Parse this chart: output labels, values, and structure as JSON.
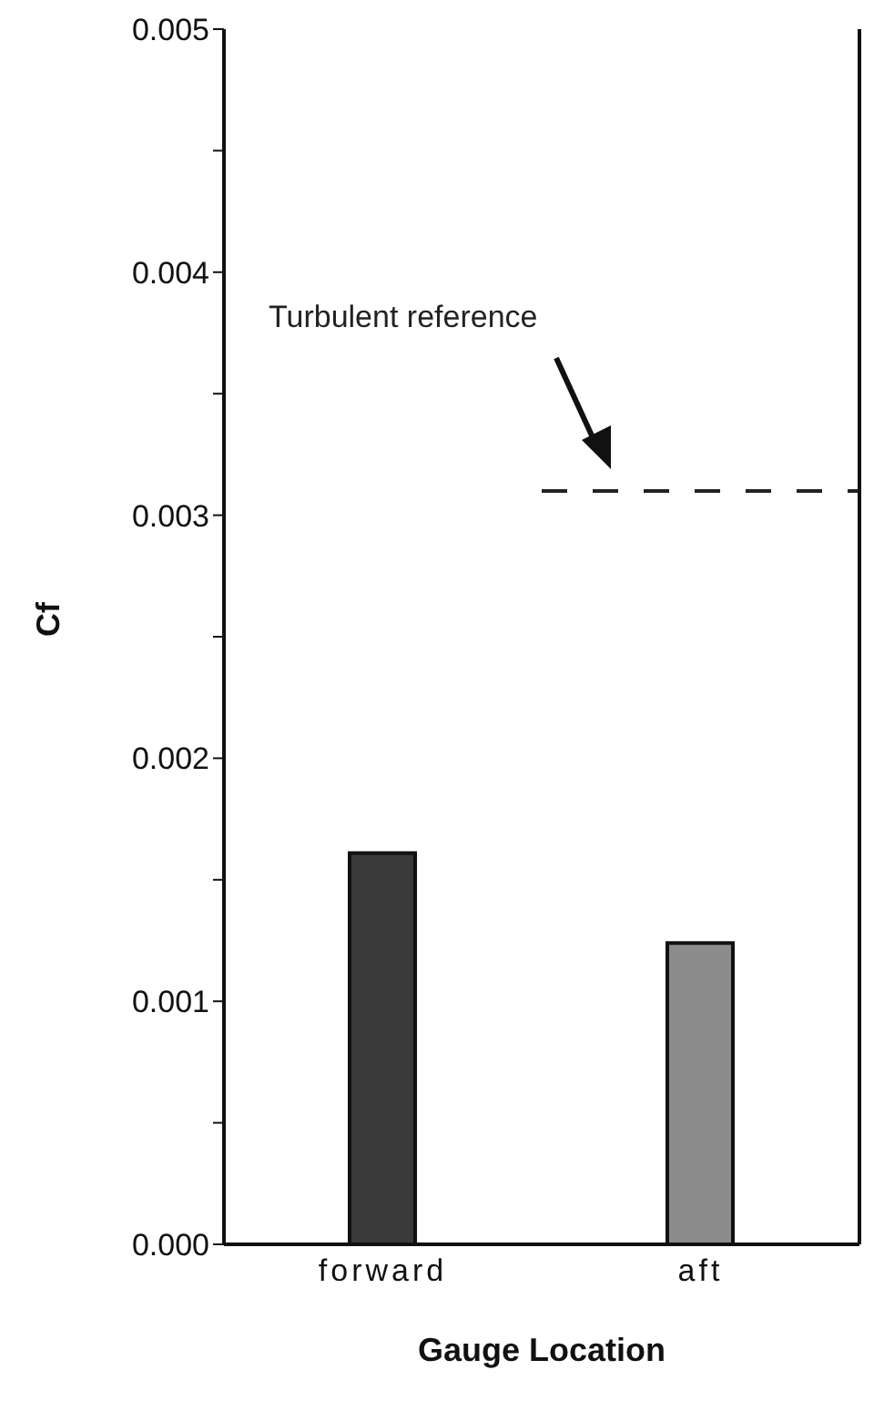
{
  "chart_data": {
    "type": "bar",
    "xlabel": "Gauge Location",
    "ylabel": "Cf",
    "categories": [
      "forward",
      "aft"
    ],
    "values": [
      0.00161,
      0.00124
    ],
    "colors": [
      "#3a3a3a",
      "#8c8c8c"
    ],
    "ylim": [
      0,
      0.005
    ],
    "yticks": [
      {
        "value": 0,
        "label": "0.000"
      },
      {
        "value": 0.0005,
        "label": null
      },
      {
        "value": 0.001,
        "label": "0.001"
      },
      {
        "value": 0.0015,
        "label": null
      },
      {
        "value": 0.002,
        "label": "0.002"
      },
      {
        "value": 0.0025,
        "label": null
      },
      {
        "value": 0.003,
        "label": "0.003"
      },
      {
        "value": 0.0035,
        "label": null
      },
      {
        "value": 0.004,
        "label": "0.004"
      },
      {
        "value": 0.0045,
        "label": null
      },
      {
        "value": 0.005,
        "label": "0.005"
      }
    ],
    "grid": false,
    "legend": false,
    "ref_lines": [
      {
        "axis": "y",
        "value": 0.0031,
        "label": "Turbulent reference",
        "color": "#222222",
        "line_style": "dashed"
      }
    ]
  }
}
